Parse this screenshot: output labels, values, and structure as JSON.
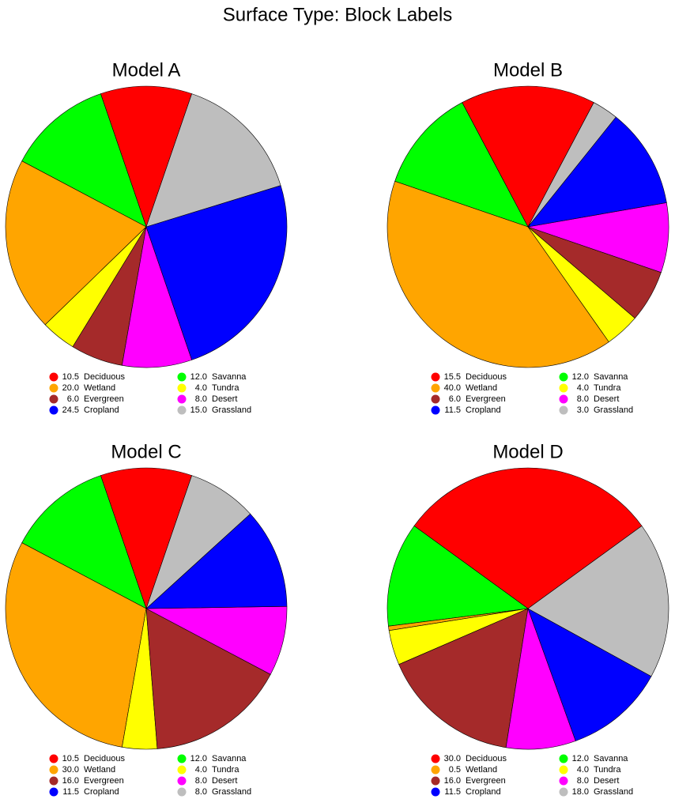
{
  "title": "Surface Type: Block Labels",
  "chart_data": [
    {
      "type": "pie",
      "title": "Model A",
      "categories": [
        "Deciduous",
        "Savanna",
        "Wetland",
        "Tundra",
        "Evergreen",
        "Desert",
        "Cropland",
        "Grassland"
      ],
      "values": [
        10.5,
        12,
        20,
        4,
        6,
        8,
        24.5,
        15
      ],
      "value_labels": [
        "10.5",
        "12.0",
        "20.0",
        "4.0",
        "6.0",
        "8.0",
        "24.5",
        "15.0"
      ],
      "colors": [
        "#ff0000",
        "#00ff00",
        "#ffa500",
        "#ffff00",
        "#a52a2a",
        "#ff00ff",
        "#0000ff",
        "#bebebe"
      ]
    },
    {
      "type": "pie",
      "title": "Model B",
      "categories": [
        "Deciduous",
        "Savanna",
        "Wetland",
        "Tundra",
        "Evergreen",
        "Desert",
        "Cropland",
        "Grassland"
      ],
      "values": [
        15.5,
        12,
        40,
        4,
        6,
        8,
        11.5,
        3
      ],
      "value_labels": [
        "15.5",
        "12.0",
        "40.0",
        "4.0",
        "6.0",
        "8.0",
        "11.5",
        "3.0"
      ],
      "colors": [
        "#ff0000",
        "#00ff00",
        "#ffa500",
        "#ffff00",
        "#a52a2a",
        "#ff00ff",
        "#0000ff",
        "#bebebe"
      ]
    },
    {
      "type": "pie",
      "title": "Model C",
      "categories": [
        "Deciduous",
        "Savanna",
        "Wetland",
        "Tundra",
        "Evergreen",
        "Desert",
        "Cropland",
        "Grassland"
      ],
      "values": [
        10.5,
        12,
        30,
        4,
        16,
        8,
        11.5,
        8
      ],
      "value_labels": [
        "10.5",
        "12.0",
        "30.0",
        "4.0",
        "16.0",
        "8.0",
        "11.5",
        "8.0"
      ],
      "colors": [
        "#ff0000",
        "#00ff00",
        "#ffa500",
        "#ffff00",
        "#a52a2a",
        "#ff00ff",
        "#0000ff",
        "#bebebe"
      ]
    },
    {
      "type": "pie",
      "title": "Model D",
      "categories": [
        "Deciduous",
        "Savanna",
        "Wetland",
        "Tundra",
        "Evergreen",
        "Desert",
        "Cropland",
        "Grassland"
      ],
      "values": [
        30,
        12,
        0.5,
        4,
        16,
        8,
        11.5,
        18
      ],
      "value_labels": [
        "30.0",
        "12.0",
        "0.5",
        "4.0",
        "16.0",
        "8.0",
        "11.5",
        "18.0"
      ],
      "colors": [
        "#ff0000",
        "#00ff00",
        "#ffa500",
        "#ffff00",
        "#a52a2a",
        "#ff00ff",
        "#0000ff",
        "#bebebe"
      ]
    }
  ]
}
